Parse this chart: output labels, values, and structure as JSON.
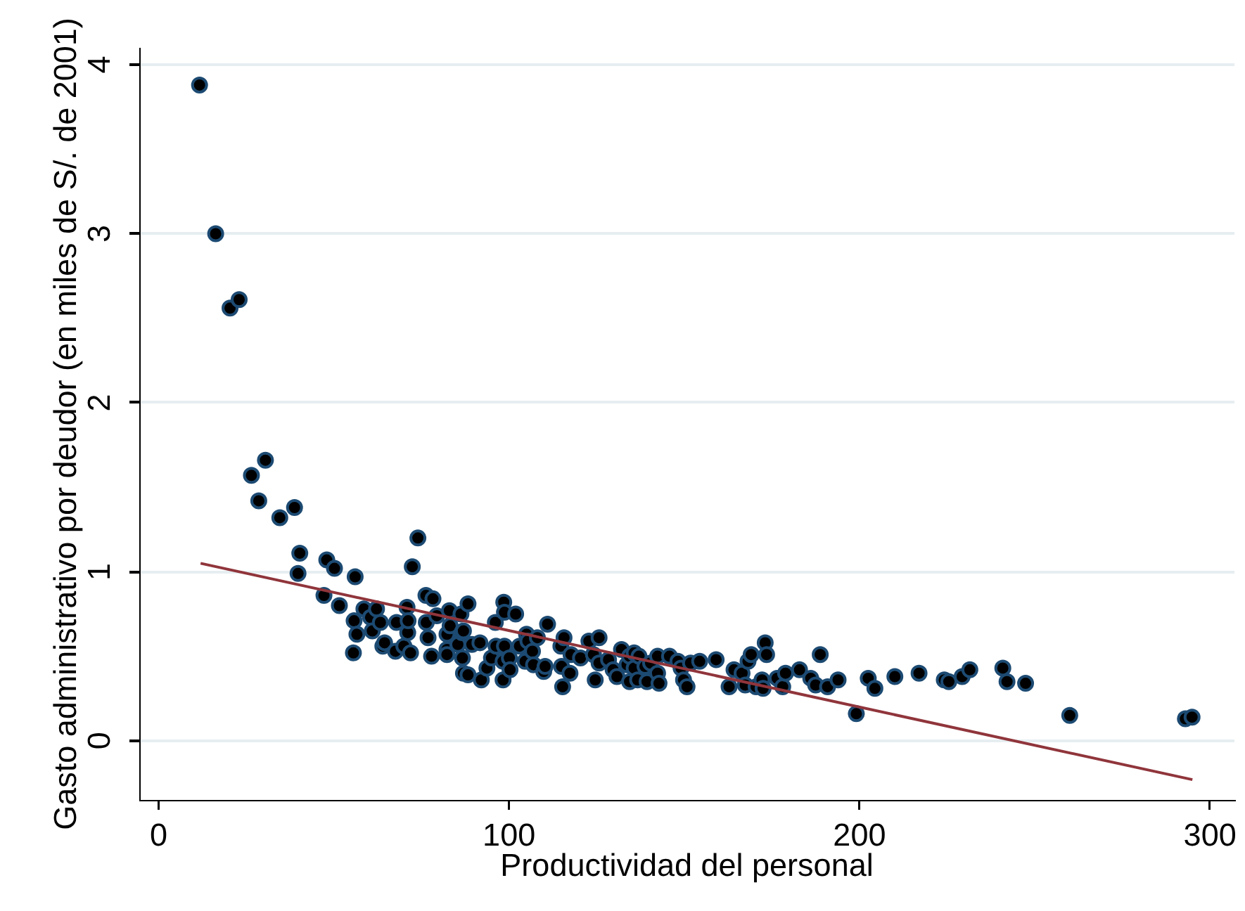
{
  "chart_data": {
    "type": "scatter",
    "xlabel": "Productividad del personal",
    "ylabel": "Gasto administrativo por deudor (en miles de S/. de 2001)",
    "xlim": [
      -5.5,
      307
    ],
    "ylim": [
      -0.35,
      4.1
    ],
    "xticks": [
      0,
      100,
      200,
      300
    ],
    "yticks": [
      0,
      1,
      2,
      3,
      4
    ],
    "grid": "y",
    "legend": false,
    "series": [
      {
        "marker": "circle",
        "color": "#1c4a72",
        "x": [
          11.7,
          16.3,
          20.4,
          23.0,
          26.5,
          28.6,
          30.5,
          34.6,
          38.8,
          39.8,
          40.3,
          47.2,
          48.0,
          50.2,
          51.6,
          55.6,
          55.8,
          56.1,
          56.6,
          58.6,
          60.5,
          61.0,
          62.2,
          63.3,
          64.0,
          64.5,
          67.6,
          67.9,
          70.0,
          70.9,
          71.1,
          71.2,
          71.9,
          72.4,
          74.0,
          76.3,
          76.4,
          76.9,
          77.9,
          78.3,
          79.4,
          82.3,
          82.3,
          82.3,
          83.0,
          83.2,
          85.4,
          86.3,
          86.6,
          86.7,
          87.0,
          87.0,
          88.3,
          88.3,
          89.4,
          91.7,
          92.1,
          93.7,
          95.0,
          96.1,
          96.3,
          98.3,
          98.3,
          98.5,
          98.7,
          98.7,
          100.1,
          100.3,
          101.9,
          103.0,
          104.6,
          105.0,
          105.4,
          106.7,
          107.0,
          108.1,
          109.9,
          110.3,
          111.0,
          114.8,
          115.0,
          115.3,
          115.7,
          117.4,
          117.7,
          120.4,
          122.8,
          124.1,
          124.6,
          125.7,
          125.7,
          128.4,
          129.7,
          130.8,
          132.1,
          133.7,
          134.4,
          134.4,
          135.7,
          135.7,
          136.7,
          137.1,
          138.8,
          139.4,
          140.4,
          142.4,
          142.4,
          142.8,
          145.8,
          148.2,
          149.1,
          149.8,
          150.8,
          151.8,
          154.4,
          159.1,
          162.8,
          164.2,
          166.5,
          167.4,
          168.2,
          169.1,
          170.5,
          172.2,
          172.5,
          173.1,
          173.5,
          176.5,
          178.1,
          178.9,
          182.9,
          186.1,
          187.5,
          188.8,
          190.9,
          193.9,
          199.1,
          202.5,
          204.4,
          210.1,
          217.0,
          224.2,
          225.5,
          229.3,
          231.5,
          240.9,
          242.1,
          247.4,
          260.0,
          293.0,
          294.9
        ],
        "values": [
          3.88,
          3.0,
          2.56,
          2.61,
          1.57,
          1.42,
          1.66,
          1.32,
          1.38,
          0.99,
          1.11,
          0.86,
          1.07,
          1.02,
          0.8,
          0.52,
          0.71,
          0.97,
          0.63,
          0.78,
          0.73,
          0.65,
          0.78,
          0.7,
          0.56,
          0.58,
          0.53,
          0.7,
          0.56,
          0.79,
          0.64,
          0.71,
          0.52,
          1.03,
          1.2,
          0.86,
          0.7,
          0.61,
          0.5,
          0.84,
          0.74,
          0.54,
          0.63,
          0.51,
          0.77,
          0.68,
          0.57,
          0.75,
          0.64,
          0.49,
          0.65,
          0.4,
          0.81,
          0.39,
          0.57,
          0.58,
          0.36,
          0.43,
          0.49,
          0.7,
          0.56,
          0.47,
          0.36,
          0.82,
          0.76,
          0.56,
          0.49,
          0.42,
          0.75,
          0.56,
          0.47,
          0.63,
          0.59,
          0.53,
          0.45,
          0.61,
          0.41,
          0.44,
          0.69,
          0.56,
          0.44,
          0.32,
          0.61,
          0.4,
          0.51,
          0.49,
          0.59,
          0.51,
          0.36,
          0.61,
          0.46,
          0.48,
          0.42,
          0.38,
          0.54,
          0.45,
          0.5,
          0.35,
          0.52,
          0.43,
          0.36,
          0.5,
          0.44,
          0.35,
          0.46,
          0.5,
          0.4,
          0.34,
          0.5,
          0.47,
          0.43,
          0.36,
          0.32,
          0.46,
          0.47,
          0.48,
          0.32,
          0.42,
          0.4,
          0.33,
          0.47,
          0.51,
          0.32,
          0.36,
          0.31,
          0.58,
          0.51,
          0.37,
          0.32,
          0.4,
          0.42,
          0.37,
          0.33,
          0.51,
          0.32,
          0.36,
          0.16,
          0.37,
          0.31,
          0.38,
          0.4,
          0.36,
          0.35,
          0.38,
          0.42,
          0.43,
          0.35,
          0.34,
          0.15,
          0.13,
          0.14
        ]
      },
      {
        "type": "line",
        "marker": "none",
        "color": "#90353b",
        "x": [
          12,
          295
        ],
        "values": [
          1.05,
          -0.23
        ]
      }
    ]
  }
}
